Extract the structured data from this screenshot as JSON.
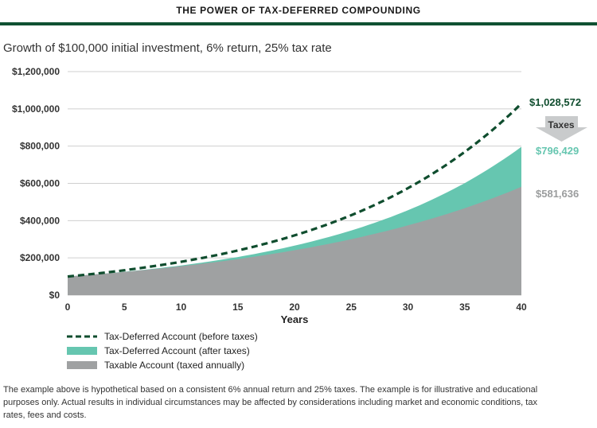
{
  "header": {
    "title": "THE POWER OF TAX-DEFERRED COMPOUNDING"
  },
  "colors": {
    "deferred_before": "#0f4d2e",
    "deferred_after": "#66c6b0",
    "taxable": "#9fa1a2",
    "rule": "#0f5132",
    "taxes_arrow": "#c9cbcc"
  },
  "chart_data": {
    "type": "area",
    "title": "",
    "subtitle": "Growth of $100,000 initial investment, 6% return, 25% tax rate",
    "xlabel": "Years",
    "ylabel": "",
    "xlim": [
      0,
      40
    ],
    "ylim": [
      0,
      1200000
    ],
    "grid": true,
    "x_ticks": [
      "0",
      "5",
      "10",
      "15",
      "20",
      "25",
      "30",
      "35",
      "40"
    ],
    "y_ticks": [
      "$1,200,000",
      "$1,000,000",
      "$800,000",
      "$600,000",
      "$400,000",
      "$200,000",
      "$0"
    ],
    "x": [
      0,
      5,
      10,
      15,
      20,
      25,
      30,
      35,
      40
    ],
    "series": [
      {
        "name": "Tax-Deferred Account (before taxes)",
        "style": "dashed",
        "values": [
          100000,
          133823,
          179085,
          239656,
          320714,
          429187,
          574349,
          768609,
          1028572
        ]
      },
      {
        "name": "Tax-Deferred Account (after taxes)",
        "style": "area",
        "values": [
          100000,
          125367,
          159314,
          204742,
          265536,
          346890,
          455762,
          601457,
          796429
        ]
      },
      {
        "name": "Taxable Account (taxed annually)",
        "style": "area",
        "values": [
          100000,
          124618,
          155297,
          193529,
          241171,
          300543,
          374532,
          466735,
          581636
        ]
      }
    ],
    "end_labels": {
      "before_taxes": "$1,028,572",
      "after_taxes": "$796,429",
      "taxable": "$581,636",
      "taxes_arrow": "Taxes"
    }
  },
  "footnote": "The example above is hypothetical based on a consistent 6% annual return and 25% taxes. The example is for illustrative and educational purposes only. Actual results in individual circumstances may be affected by considerations including market and economic conditions, tax rates, fees and costs."
}
